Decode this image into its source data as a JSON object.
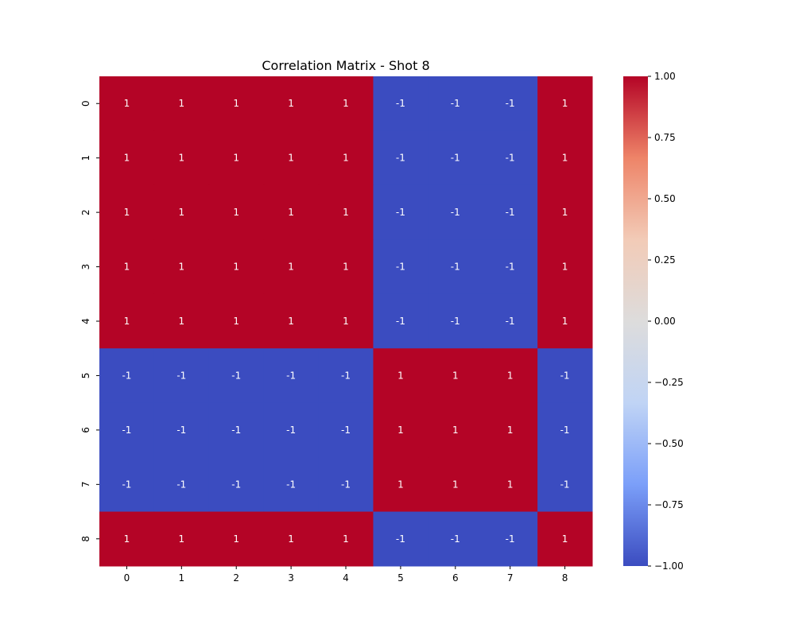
{
  "chart_data": {
    "type": "heatmap",
    "title": "Correlation Matrix - Shot 8",
    "xlabel": "",
    "ylabel": "",
    "x_categories": [
      "0",
      "1",
      "2",
      "3",
      "4",
      "5",
      "6",
      "7",
      "8"
    ],
    "y_categories": [
      "0",
      "1",
      "2",
      "3",
      "4",
      "5",
      "6",
      "7",
      "8"
    ],
    "values": [
      [
        1,
        1,
        1,
        1,
        1,
        -1,
        -1,
        -1,
        1
      ],
      [
        1,
        1,
        1,
        1,
        1,
        -1,
        -1,
        -1,
        1
      ],
      [
        1,
        1,
        1,
        1,
        1,
        -1,
        -1,
        -1,
        1
      ],
      [
        1,
        1,
        1,
        1,
        1,
        -1,
        -1,
        -1,
        1
      ],
      [
        1,
        1,
        1,
        1,
        1,
        -1,
        -1,
        -1,
        1
      ],
      [
        -1,
        -1,
        -1,
        -1,
        -1,
        1,
        1,
        1,
        -1
      ],
      [
        -1,
        -1,
        -1,
        -1,
        -1,
        1,
        1,
        1,
        -1
      ],
      [
        -1,
        -1,
        -1,
        -1,
        -1,
        1,
        1,
        1,
        -1
      ],
      [
        1,
        1,
        1,
        1,
        1,
        -1,
        -1,
        -1,
        1
      ]
    ],
    "annotations": [
      [
        "1",
        "1",
        "1",
        "1",
        "1",
        "-1",
        "-1",
        "-1",
        "1"
      ],
      [
        "1",
        "1",
        "1",
        "1",
        "1",
        "-1",
        "-1",
        "-1",
        "1"
      ],
      [
        "1",
        "1",
        "1",
        "1",
        "1",
        "-1",
        "-1",
        "-1",
        "1"
      ],
      [
        "1",
        "1",
        "1",
        "1",
        "1",
        "-1",
        "-1",
        "-1",
        "1"
      ],
      [
        "1",
        "1",
        "1",
        "1",
        "1",
        "-1",
        "-1",
        "-1",
        "1"
      ],
      [
        "-1",
        "-1",
        "-1",
        "-1",
        "-1",
        "1",
        "1",
        "1",
        "-1"
      ],
      [
        "-1",
        "-1",
        "-1",
        "-1",
        "-1",
        "1",
        "1",
        "1",
        "-1"
      ],
      [
        "-1",
        "-1",
        "-1",
        "-1",
        "-1",
        "1",
        "1",
        "1",
        "-1"
      ],
      [
        "1",
        "1",
        "1",
        "1",
        "1",
        "-1",
        "-1",
        "-1",
        "1"
      ]
    ],
    "colorbar": {
      "range": [
        -1.0,
        1.0
      ],
      "ticks": [
        1.0,
        0.75,
        0.5,
        0.25,
        0.0,
        -0.25,
        -0.5,
        -0.75,
        -1.0
      ],
      "tick_labels": [
        "1.00",
        "0.75",
        "0.50",
        "0.25",
        "0.00",
        "−0.25",
        "−0.50",
        "−0.75",
        "−1.00"
      ],
      "colormap": "coolwarm",
      "colors": [
        "#3b4cc0",
        "#7b9ff9",
        "#c0d4f5",
        "#dddcdc",
        "#f2cbb7",
        "#ee8468",
        "#b40426"
      ]
    },
    "grid": false,
    "legend": "colorbar-right"
  }
}
